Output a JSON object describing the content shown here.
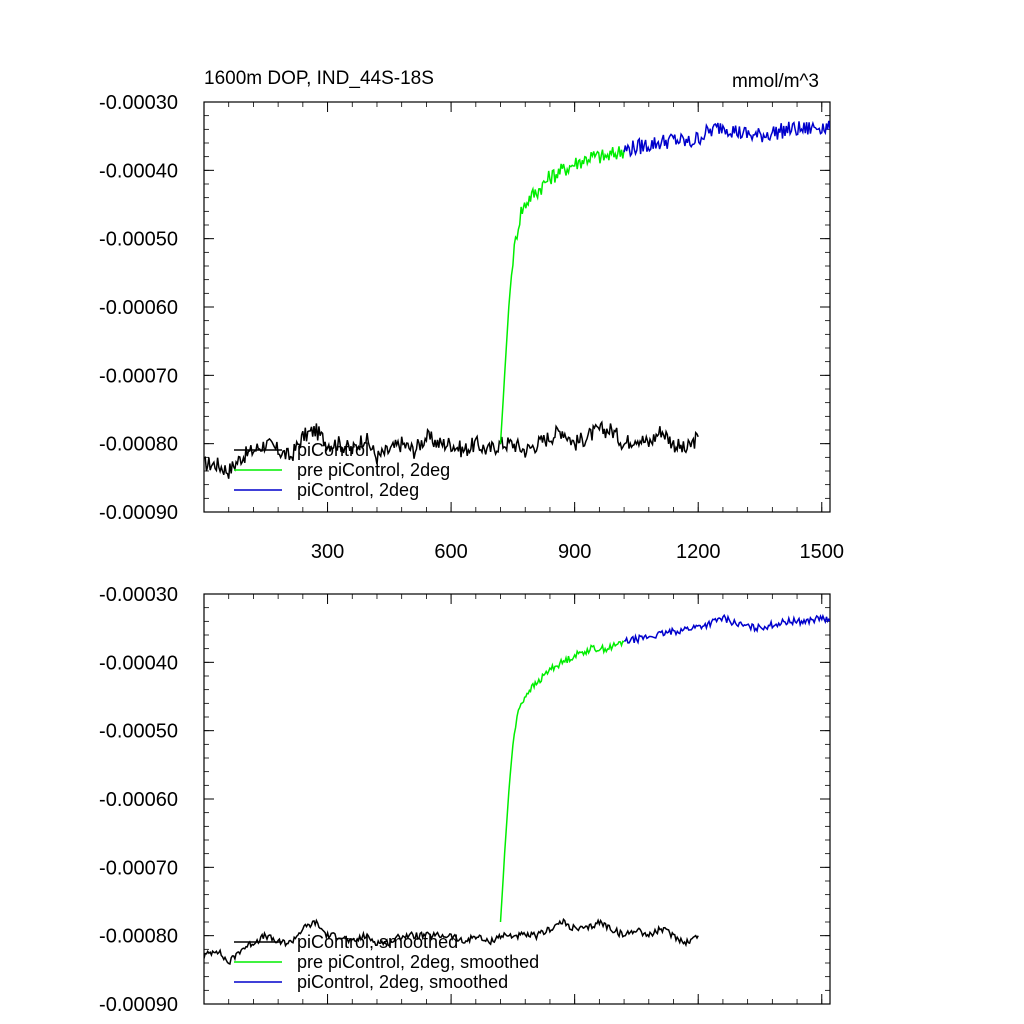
{
  "figure": {
    "title_left": "1600m DOP, IND_44S-18S",
    "title_right": "mmol/m^3"
  },
  "chart_data": [
    {
      "type": "line",
      "panel": "top",
      "xlim": [
        0,
        1520
      ],
      "ylim": [
        -0.0009,
        -0.0003
      ],
      "x_ticks": [
        300,
        600,
        900,
        1200,
        1500
      ],
      "x_tick_labels": [
        "300",
        "600",
        "900",
        "1200",
        "1500"
      ],
      "y_ticks": [
        -0.0003,
        -0.0004,
        -0.0005,
        -0.0006,
        -0.0007,
        -0.0008,
        -0.0009
      ],
      "y_tick_labels": [
        "-0.00030",
        "-0.00040",
        "-0.00050",
        "-0.00060",
        "-0.00070",
        "-0.00080",
        "-0.00090"
      ],
      "grid": false,
      "legend_placement": "bottom-left",
      "series": [
        {
          "name": "piControl",
          "color": "#000000",
          "x": [
            0,
            30,
            60,
            90,
            120,
            150,
            180,
            210,
            240,
            270,
            300,
            330,
            360,
            390,
            420,
            450,
            480,
            510,
            540,
            570,
            600,
            630,
            660,
            690,
            720,
            750,
            780,
            810,
            840,
            870,
            900,
            930,
            960,
            990,
            1020,
            1050,
            1080,
            1110,
            1140,
            1170,
            1200
          ],
          "y": [
            -0.00083,
            -0.00083,
            -0.00084,
            -0.00082,
            -0.00081,
            -0.0008,
            -0.00081,
            -0.00082,
            -0.00079,
            -0.00078,
            -0.0008,
            -0.0008,
            -0.00081,
            -0.00079,
            -0.00082,
            -0.00081,
            -0.0008,
            -0.00081,
            -0.00079,
            -0.0008,
            -0.0008,
            -0.00081,
            -0.0008,
            -0.00081,
            -0.0008,
            -0.0008,
            -0.00081,
            -0.0008,
            -0.00079,
            -0.00078,
            -0.0008,
            -0.00079,
            -0.00078,
            -0.00078,
            -0.0008,
            -0.00079,
            -0.0008,
            -0.00078,
            -0.0008,
            -0.00081,
            -0.00079
          ]
        },
        {
          "name": "pre piControl, 2deg",
          "color": "#00ee00",
          "x": [
            720,
            730,
            740,
            750,
            760,
            770,
            790,
            810,
            840,
            870,
            900,
            940,
            980,
            1020
          ],
          "y": [
            -0.0008,
            -0.0007,
            -0.0006,
            -0.00053,
            -0.00049,
            -0.00046,
            -0.00044,
            -0.00043,
            -0.00041,
            -0.0004,
            -0.00039,
            -0.00038,
            -0.00038,
            -0.00037
          ]
        },
        {
          "name": "piControl, 2deg",
          "color": "#0000cc",
          "x": [
            1020,
            1060,
            1100,
            1140,
            1180,
            1220,
            1260,
            1300,
            1340,
            1380,
            1420,
            1460,
            1500,
            1520
          ],
          "y": [
            -0.00037,
            -0.000365,
            -0.00036,
            -0.000355,
            -0.00036,
            -0.000345,
            -0.000335,
            -0.000345,
            -0.00035,
            -0.000345,
            -0.00034,
            -0.00034,
            -0.000335,
            -0.00034
          ]
        }
      ]
    },
    {
      "type": "line",
      "panel": "bottom",
      "xlim": [
        0,
        1520
      ],
      "ylim": [
        -0.0009,
        -0.0003
      ],
      "x_ticks": [
        300,
        600,
        900,
        1200,
        1500
      ],
      "x_tick_labels": [],
      "y_ticks": [
        -0.0003,
        -0.0004,
        -0.0005,
        -0.0006,
        -0.0007,
        -0.0008,
        -0.0009
      ],
      "y_tick_labels": [
        "-0.00030",
        "-0.00040",
        "-0.00050",
        "-0.00060",
        "-0.00070",
        "-0.00080",
        "-0.00090"
      ],
      "grid": false,
      "legend_placement": "bottom-left",
      "series": [
        {
          "name": "piControl, smoothed",
          "color": "#000000",
          "x": [
            0,
            30,
            60,
            90,
            120,
            150,
            180,
            210,
            240,
            270,
            300,
            330,
            360,
            390,
            420,
            450,
            480,
            510,
            540,
            570,
            600,
            630,
            660,
            690,
            720,
            750,
            780,
            810,
            840,
            870,
            900,
            930,
            960,
            990,
            1020,
            1050,
            1080,
            1110,
            1140,
            1170,
            1200
          ],
          "y": [
            -0.00083,
            -0.00082,
            -0.00084,
            -0.00082,
            -0.00081,
            -0.0008,
            -0.00081,
            -0.00081,
            -0.00079,
            -0.00078,
            -0.0008,
            -0.0008,
            -0.00081,
            -0.0008,
            -0.00081,
            -0.00081,
            -0.0008,
            -0.0008,
            -0.0008,
            -0.0008,
            -0.0008,
            -0.00081,
            -0.0008,
            -0.00081,
            -0.0008,
            -0.0008,
            -0.0008,
            -0.0008,
            -0.00079,
            -0.00078,
            -0.00079,
            -0.00079,
            -0.00078,
            -0.00079,
            -0.0008,
            -0.00079,
            -0.0008,
            -0.00079,
            -0.0008,
            -0.00081,
            -0.0008
          ]
        },
        {
          "name": "pre piControl, 2deg, smoothed",
          "color": "#00ee00",
          "x": [
            720,
            730,
            740,
            750,
            760,
            770,
            790,
            810,
            840,
            870,
            900,
            940,
            980,
            1020
          ],
          "y": [
            -0.00078,
            -0.00068,
            -0.00059,
            -0.00052,
            -0.00048,
            -0.00046,
            -0.00044,
            -0.00043,
            -0.00041,
            -0.0004,
            -0.00039,
            -0.00038,
            -0.00038,
            -0.00037
          ]
        },
        {
          "name": "piControl, 2deg, smoothed",
          "color": "#0000cc",
          "x": [
            1020,
            1060,
            1100,
            1140,
            1180,
            1220,
            1260,
            1300,
            1340,
            1380,
            1420,
            1460,
            1500,
            1520
          ],
          "y": [
            -0.00037,
            -0.000365,
            -0.00036,
            -0.000355,
            -0.00035,
            -0.000345,
            -0.000335,
            -0.000345,
            -0.00035,
            -0.000345,
            -0.00034,
            -0.00034,
            -0.000335,
            -0.00034
          ]
        }
      ]
    }
  ]
}
